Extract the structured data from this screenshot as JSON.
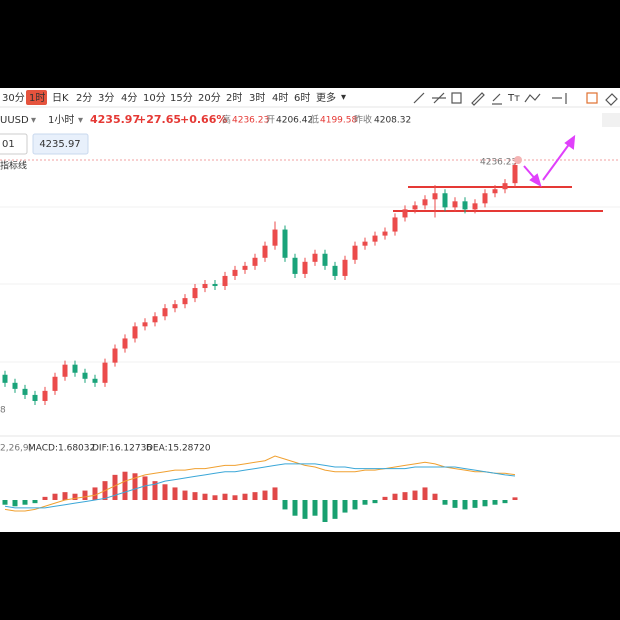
{
  "toolbar": {
    "periods": [
      "30分",
      "1时",
      "日K",
      "2分",
      "3分",
      "4分",
      "10分",
      "15分",
      "20分",
      "2时",
      "3时",
      "4时",
      "6时",
      "更多"
    ],
    "active": 1
  },
  "quote": {
    "symbol": "UUSD",
    "interval": "1小时",
    "price": "4235.97",
    "change": "+27.65",
    "change_pct": "+0.66%",
    "high_label": "高",
    "high": "4236.23",
    "open_label": "开",
    "open": "4206.42",
    "low_label": "低",
    "low": "4199.58",
    "prev_close_label": "昨收",
    "prev_close": "4208.32"
  },
  "price_box": {
    "left": "01",
    "value": "4235.97"
  },
  "indicator_label": "指标线",
  "price_marker": "4236.23",
  "axis_stub": "8",
  "candles": {
    "open": [
      4132,
      4128,
      4125,
      4122,
      4119,
      4124,
      4131,
      4137,
      4133,
      4130,
      4128,
      4138,
      4145,
      4150,
      4156,
      4158,
      4161,
      4165,
      4167,
      4170,
      4175,
      4177,
      4176,
      4181,
      4184,
      4186,
      4190,
      4196,
      4204,
      4190,
      4182,
      4188,
      4192,
      4186,
      4181,
      4189,
      4196,
      4198,
      4201,
      4203,
      4210,
      4214,
      4216,
      4219,
      4222,
      4215,
      4218,
      4214,
      4217,
      4222,
      4224,
      4227
    ],
    "high": [
      4134,
      4130,
      4127,
      4124,
      4126,
      4133,
      4139,
      4139,
      4135,
      4132,
      4140,
      4147,
      4152,
      4158,
      4160,
      4163,
      4167,
      4169,
      4172,
      4177,
      4179,
      4179,
      4183,
      4186,
      4188,
      4192,
      4198,
      4208,
      4206,
      4192,
      4190,
      4194,
      4194,
      4188,
      4191,
      4198,
      4200,
      4203,
      4205,
      4212,
      4216,
      4218,
      4221,
      4226,
      4224,
      4220,
      4220,
      4219,
      4224,
      4226,
      4229,
      4237
    ],
    "low": [
      4126,
      4123,
      4120,
      4117,
      4117,
      4122,
      4129,
      4131,
      4128,
      4126,
      4126,
      4136,
      4143,
      4148,
      4154,
      4156,
      4159,
      4163,
      4165,
      4168,
      4173,
      4174,
      4174,
      4179,
      4182,
      4184,
      4188,
      4194,
      4188,
      4180,
      4180,
      4186,
      4184,
      4179,
      4179,
      4187,
      4194,
      4196,
      4199,
      4201,
      4208,
      4212,
      4214,
      4210,
      4213,
      4213,
      4212,
      4212,
      4215,
      4220,
      4222,
      4225
    ],
    "close": [
      4128,
      4125,
      4122,
      4119,
      4124,
      4131,
      4137,
      4133,
      4130,
      4128,
      4138,
      4145,
      4150,
      4156,
      4158,
      4161,
      4165,
      4167,
      4170,
      4175,
      4177,
      4176,
      4181,
      4184,
      4186,
      4190,
      4196,
      4204,
      4190,
      4182,
      4188,
      4192,
      4186,
      4181,
      4189,
      4196,
      4198,
      4201,
      4203,
      4210,
      4214,
      4216,
      4219,
      4222,
      4215,
      4218,
      4214,
      4217,
      4222,
      4224,
      4227,
      4236
    ]
  },
  "macd": {
    "params": "2,26,9)",
    "macd_label": "MACD:1.68032",
    "dif_label": "DIF:16.12736",
    "dea_label": "DEA:15.28720",
    "histogram": [
      -3,
      -4,
      -3,
      -2,
      2,
      4,
      5,
      4,
      6,
      8,
      12,
      16,
      18,
      17,
      15,
      12,
      10,
      8,
      6,
      5,
      4,
      3,
      4,
      3,
      4,
      5,
      6,
      8,
      -6,
      -10,
      -12,
      -10,
      -14,
      -12,
      -8,
      -6,
      -3,
      -2,
      2,
      4,
      5,
      6,
      8,
      4,
      -3,
      -5,
      -6,
      -5,
      -4,
      -3,
      -2,
      1.68
    ],
    "dif": [
      -6,
      -7,
      -7,
      -6,
      -4,
      -2,
      0,
      1,
      2,
      3,
      6,
      9,
      12,
      14,
      16,
      17,
      18,
      19,
      19,
      20,
      20,
      21,
      22,
      22,
      23,
      24,
      25,
      28,
      26,
      24,
      22,
      21,
      19,
      18,
      18,
      18,
      19,
      19,
      20,
      21,
      22,
      23,
      24,
      23,
      21,
      20,
      19,
      18,
      18,
      17,
      17,
      16.13
    ],
    "dea": [
      -4,
      -5,
      -5,
      -5,
      -5,
      -4,
      -3,
      -2,
      -1,
      0,
      1,
      3,
      5,
      7,
      9,
      10,
      12,
      13,
      14,
      15,
      16,
      17,
      18,
      18,
      19,
      20,
      21,
      22,
      23,
      23,
      23,
      23,
      22,
      21,
      21,
      20,
      20,
      20,
      20,
      20,
      20,
      21,
      21,
      21,
      21,
      21,
      20,
      19,
      18,
      17,
      16,
      15.29
    ]
  }
}
